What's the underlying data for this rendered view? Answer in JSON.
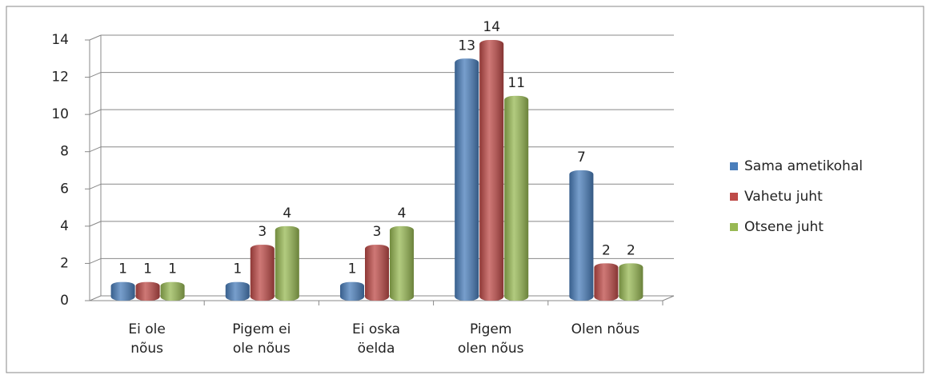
{
  "chart_data": {
    "type": "bar",
    "categories": [
      [
        "Ei ole",
        "nõus"
      ],
      [
        "Pigem ei",
        "ole nõus"
      ],
      [
        "Ei oska",
        "öelda"
      ],
      [
        "Pigem",
        "olen nõus"
      ],
      [
        "Olen nõus"
      ]
    ],
    "series": [
      {
        "name": "Sama ametikohal",
        "color": "#4a7ebb",
        "values": [
          1,
          1,
          1,
          13,
          7
        ]
      },
      {
        "name": "Vahetu juht",
        "color": "#be4b48",
        "values": [
          1,
          3,
          3,
          14,
          2
        ]
      },
      {
        "name": "Otsene juht",
        "color": "#98b954",
        "values": [
          1,
          4,
          4,
          11,
          2
        ]
      }
    ],
    "ylim": [
      0,
      14
    ],
    "yticks": [
      0,
      2,
      4,
      6,
      8,
      10,
      12,
      14
    ],
    "grid": true,
    "legend": "right"
  }
}
